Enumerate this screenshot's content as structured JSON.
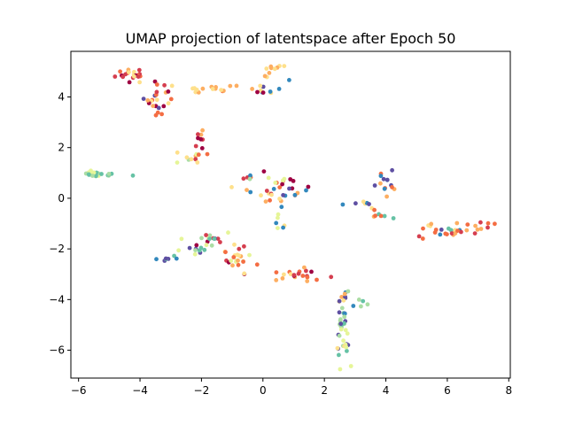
{
  "chart_data": {
    "type": "scatter",
    "title": "UMAP projection of latentspace after Epoch 50",
    "xlabel": "",
    "ylabel": "",
    "xlim": [
      -6.25,
      8.05
    ],
    "ylim": [
      -7.1,
      5.8
    ],
    "xticks": [
      -6,
      -4,
      -2,
      0,
      2,
      4,
      6,
      8
    ],
    "yticks": [
      -6,
      -4,
      -2,
      0,
      2,
      4
    ],
    "grid": false,
    "palette": [
      "#9e0142",
      "#d53e4f",
      "#f46d43",
      "#fdae61",
      "#fee08b",
      "#e6f598",
      "#abdda4",
      "#66c2a5",
      "#3288bd",
      "#5e4fa2"
    ],
    "clusters": [
      {
        "cx": -4.3,
        "cy": 4.9,
        "sx": 0.25,
        "sy": 0.18,
        "n": 20,
        "c": [
          0,
          1,
          2,
          3,
          4
        ]
      },
      {
        "cx": -3.4,
        "cy": 4.0,
        "sx": 0.3,
        "sy": 0.3,
        "n": 24,
        "c": [
          0,
          1,
          2,
          3,
          4,
          9
        ]
      },
      {
        "cx": -2.2,
        "cy": 4.25,
        "sx": 0.35,
        "sy": 0.1,
        "n": 8,
        "c": [
          1,
          2,
          3,
          4
        ]
      },
      {
        "cx": -1.1,
        "cy": 4.3,
        "sx": 0.3,
        "sy": 0.08,
        "n": 8,
        "c": [
          2,
          3,
          4,
          7,
          8
        ]
      },
      {
        "cx": 0.0,
        "cy": 4.3,
        "sx": 0.2,
        "sy": 0.25,
        "n": 10,
        "c": [
          0,
          4,
          8,
          9
        ]
      },
      {
        "cx": 0.35,
        "cy": 5.0,
        "sx": 0.25,
        "sy": 0.15,
        "n": 10,
        "c": [
          3,
          4,
          7,
          8
        ]
      },
      {
        "cx": -2.05,
        "cy": 2.4,
        "sx": 0.15,
        "sy": 0.3,
        "n": 9,
        "c": [
          0,
          1,
          3
        ]
      },
      {
        "cx": -2.4,
        "cy": 1.55,
        "sx": 0.25,
        "sy": 0.1,
        "n": 10,
        "c": [
          1,
          2,
          4,
          5,
          6
        ]
      },
      {
        "cx": -5.5,
        "cy": 0.95,
        "sx": 0.15,
        "sy": 0.08,
        "n": 16,
        "c": [
          5,
          6,
          7
        ]
      },
      {
        "cx": -4.95,
        "cy": 0.95,
        "sx": 0.25,
        "sy": 0.05,
        "n": 7,
        "c": [
          5,
          6,
          7
        ]
      },
      {
        "cx": -0.6,
        "cy": 0.9,
        "sx": 0.25,
        "sy": 0.1,
        "n": 5,
        "c": [
          1,
          2,
          6,
          8
        ]
      },
      {
        "cx": 0.2,
        "cy": 0.15,
        "sx": 0.35,
        "sy": 0.25,
        "n": 16,
        "c": [
          1,
          2,
          3,
          4,
          8,
          9
        ]
      },
      {
        "cx": 0.8,
        "cy": 0.55,
        "sx": 0.3,
        "sy": 0.25,
        "n": 16,
        "c": [
          0,
          2,
          4,
          5,
          8,
          9
        ]
      },
      {
        "cx": 0.55,
        "cy": -0.7,
        "sx": 0.15,
        "sy": 0.3,
        "n": 8,
        "c": [
          4,
          5,
          8
        ]
      },
      {
        "cx": 3.3,
        "cy": -0.2,
        "sx": 0.3,
        "sy": 0.08,
        "n": 7,
        "c": [
          4,
          8,
          9
        ]
      },
      {
        "cx": 4.0,
        "cy": 0.55,
        "sx": 0.2,
        "sy": 0.2,
        "n": 14,
        "c": [
          2,
          3,
          7,
          8,
          9
        ]
      },
      {
        "cx": 3.9,
        "cy": -0.6,
        "sx": 0.2,
        "sy": 0.15,
        "n": 7,
        "c": [
          2,
          3,
          7,
          8
        ]
      },
      {
        "cx": 6.1,
        "cy": -1.35,
        "sx": 0.3,
        "sy": 0.1,
        "n": 18,
        "c": [
          1,
          2,
          3,
          4,
          7,
          8,
          9
        ]
      },
      {
        "cx": 7.0,
        "cy": -1.05,
        "sx": 0.35,
        "sy": 0.15,
        "n": 10,
        "c": [
          1,
          2,
          3
        ]
      },
      {
        "cx": 5.3,
        "cy": -1.2,
        "sx": 0.25,
        "sy": 0.15,
        "n": 6,
        "c": [
          2,
          3,
          4
        ]
      },
      {
        "cx": -1.9,
        "cy": -1.6,
        "sx": 0.35,
        "sy": 0.15,
        "n": 16,
        "c": [
          0,
          1,
          5,
          6,
          7,
          9
        ]
      },
      {
        "cx": -2.6,
        "cy": -2.1,
        "sx": 0.3,
        "sy": 0.15,
        "n": 10,
        "c": [
          5,
          6,
          7,
          9
        ]
      },
      {
        "cx": -3.2,
        "cy": -2.45,
        "sx": 0.2,
        "sy": 0.1,
        "n": 6,
        "c": [
          7,
          8,
          9
        ]
      },
      {
        "cx": -0.8,
        "cy": -2.5,
        "sx": 0.35,
        "sy": 0.35,
        "n": 24,
        "c": [
          0,
          1,
          2,
          3,
          4,
          5,
          6
        ]
      },
      {
        "cx": 0.7,
        "cy": -3.05,
        "sx": 0.3,
        "sy": 0.12,
        "n": 8,
        "c": [
          1,
          2,
          3,
          4
        ]
      },
      {
        "cx": 1.4,
        "cy": -3.05,
        "sx": 0.25,
        "sy": 0.15,
        "n": 12,
        "c": [
          0,
          1,
          2,
          3
        ]
      },
      {
        "cx": 2.5,
        "cy": -3.9,
        "sx": 0.12,
        "sy": 0.2,
        "n": 8,
        "c": [
          3,
          4,
          8,
          9
        ]
      },
      {
        "cx": 2.55,
        "cy": -4.8,
        "sx": 0.1,
        "sy": 0.4,
        "n": 16,
        "c": [
          6,
          7,
          8,
          9
        ]
      },
      {
        "cx": 2.6,
        "cy": -5.7,
        "sx": 0.15,
        "sy": 0.35,
        "n": 18,
        "c": [
          4,
          5,
          6,
          7,
          9
        ]
      },
      {
        "cx": 3.05,
        "cy": -4.0,
        "sx": 0.15,
        "sy": 0.25,
        "n": 6,
        "c": [
          6,
          7,
          8
        ]
      }
    ]
  }
}
